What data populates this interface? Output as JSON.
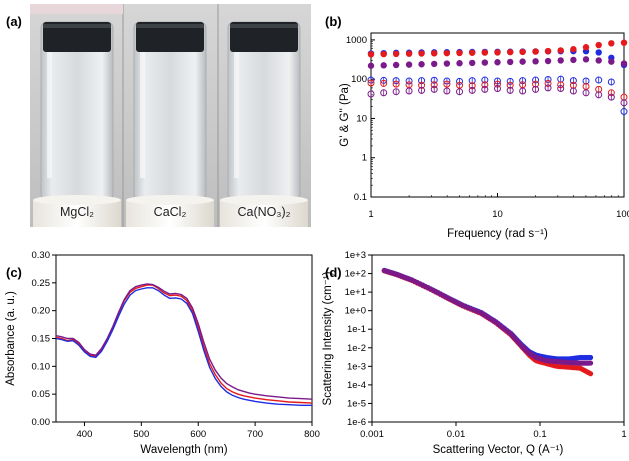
{
  "photo": {
    "panel_label": "(a)",
    "vials": [
      {
        "label": "MgCl₂"
      },
      {
        "label": "CaCl₂"
      },
      {
        "label": "Ca(NO₃)₂"
      }
    ]
  },
  "chart_data": [
    {
      "panel_label": "(b)",
      "type": "scatter",
      "xscale": "log",
      "yscale": "log",
      "xlim": [
        1,
        100
      ],
      "ylim": [
        0.1,
        1500
      ],
      "xticks": [
        "1",
        "10",
        "100"
      ],
      "yticks": [
        "0.1",
        "1",
        "10",
        "100",
        "1000"
      ],
      "xlabel": "Frequency (rad s⁻¹)",
      "ylabel": "G' & G'' (Pa)",
      "x": [
        1,
        1.26,
        1.58,
        2,
        2.51,
        3.16,
        3.98,
        5.01,
        6.31,
        7.94,
        10,
        12.6,
        15.8,
        20,
        25.1,
        31.6,
        39.8,
        50.1,
        63.1,
        79.4,
        100
      ],
      "series": [
        {
          "marker": "filled",
          "color": "#1f2de0",
          "values": [
            450,
            460,
            468,
            472,
            478,
            482,
            486,
            490,
            492,
            495,
            498,
            500,
            505,
            510,
            512,
            515,
            518,
            515,
            480,
            350,
            230
          ]
        },
        {
          "marker": "filled",
          "color": "#e41a1c",
          "values": [
            430,
            435,
            440,
            445,
            450,
            455,
            460,
            465,
            470,
            475,
            480,
            488,
            495,
            505,
            520,
            540,
            580,
            650,
            740,
            820,
            850
          ]
        },
        {
          "marker": "filled",
          "color": "#7b1a8a",
          "values": [
            220,
            225,
            230,
            235,
            240,
            245,
            250,
            255,
            260,
            265,
            270,
            275,
            280,
            285,
            290,
            300,
            310,
            320,
            300,
            280,
            250
          ]
        },
        {
          "marker": "open",
          "color": "#1f2de0",
          "values": [
            95,
            93,
            92,
            90,
            92,
            94,
            90,
            88,
            92,
            95,
            90,
            88,
            92,
            95,
            98,
            100,
            92,
            90,
            95,
            85,
            15
          ]
        },
        {
          "marker": "open",
          "color": "#e41a1c",
          "values": [
            80,
            78,
            75,
            72,
            70,
            72,
            75,
            70,
            68,
            72,
            75,
            70,
            72,
            75,
            78,
            72,
            70,
            65,
            55,
            45,
            35
          ]
        },
        {
          "marker": "open",
          "color": "#7b1a8a",
          "values": [
            42,
            45,
            48,
            50,
            52,
            55,
            50,
            48,
            52,
            55,
            58,
            52,
            50,
            55,
            60,
            58,
            50,
            45,
            40,
            35,
            25
          ]
        }
      ]
    },
    {
      "panel_label": "(c)",
      "type": "line",
      "xlim": [
        350,
        800
      ],
      "ylim": [
        0,
        0.3
      ],
      "xticks": [
        "400",
        "500",
        "600",
        "700",
        "800"
      ],
      "yticks": [
        "0.00",
        "0.05",
        "0.10",
        "0.15",
        "0.20",
        "0.25",
        "0.30"
      ],
      "xlabel": "Wavelength (nm)",
      "ylabel": "Absorbance (a. u.)",
      "x": [
        350,
        360,
        370,
        380,
        390,
        400,
        410,
        420,
        430,
        440,
        450,
        460,
        470,
        480,
        490,
        500,
        510,
        520,
        530,
        540,
        550,
        560,
        570,
        580,
        590,
        600,
        610,
        620,
        630,
        640,
        650,
        660,
        670,
        680,
        690,
        700,
        720,
        740,
        760,
        780,
        800
      ],
      "series": [
        {
          "color": "#e41a1c",
          "values": [
            0.152,
            0.15,
            0.146,
            0.148,
            0.14,
            0.128,
            0.12,
            0.118,
            0.13,
            0.148,
            0.17,
            0.195,
            0.218,
            0.233,
            0.24,
            0.243,
            0.246,
            0.246,
            0.24,
            0.232,
            0.227,
            0.228,
            0.226,
            0.218,
            0.2,
            0.17,
            0.135,
            0.105,
            0.085,
            0.07,
            0.06,
            0.054,
            0.05,
            0.047,
            0.045,
            0.043,
            0.04,
            0.038,
            0.036,
            0.035,
            0.034
          ]
        },
        {
          "color": "#7b1a8a",
          "values": [
            0.155,
            0.153,
            0.15,
            0.15,
            0.143,
            0.13,
            0.122,
            0.12,
            0.132,
            0.15,
            0.172,
            0.197,
            0.22,
            0.236,
            0.243,
            0.246,
            0.248,
            0.247,
            0.242,
            0.235,
            0.23,
            0.231,
            0.229,
            0.222,
            0.205,
            0.177,
            0.143,
            0.113,
            0.093,
            0.079,
            0.069,
            0.063,
            0.058,
            0.055,
            0.052,
            0.05,
            0.047,
            0.045,
            0.043,
            0.042,
            0.041
          ]
        },
        {
          "color": "#1f2de0",
          "values": [
            0.15,
            0.148,
            0.145,
            0.146,
            0.138,
            0.126,
            0.118,
            0.116,
            0.127,
            0.145,
            0.166,
            0.19,
            0.212,
            0.228,
            0.236,
            0.239,
            0.241,
            0.241,
            0.236,
            0.228,
            0.222,
            0.223,
            0.221,
            0.213,
            0.195,
            0.163,
            0.128,
            0.098,
            0.078,
            0.064,
            0.054,
            0.048,
            0.044,
            0.041,
            0.039,
            0.037,
            0.034,
            0.032,
            0.031,
            0.03,
            0.03
          ]
        }
      ]
    },
    {
      "panel_label": "(d)",
      "type": "scatter",
      "xscale": "log",
      "yscale": "log",
      "xlim": [
        0.001,
        1
      ],
      "ylim": [
        1e-06,
        1000
      ],
      "xticks": [
        "0.001",
        "0.01",
        "0.1",
        "1"
      ],
      "yticks": [
        "1e-6",
        "1e-5",
        "1e-4",
        "1e-3",
        "1e-2",
        "1e-1",
        "1e+0",
        "1e+1",
        "1e+2",
        "1e+3"
      ],
      "xlabel": "Scattering Vector, Q (A⁻¹)",
      "ylabel": "Scattering Intensity (cm⁻¹)",
      "x": [
        0.0014,
        0.002,
        0.003,
        0.005,
        0.008,
        0.012,
        0.02,
        0.03,
        0.045,
        0.06,
        0.075,
        0.09,
        0.12,
        0.16,
        0.22,
        0.3,
        0.4
      ],
      "series": [
        {
          "color": "#1f2de0",
          "values": [
            150,
            90,
            45,
            15,
            5,
            2,
            0.8,
            0.25,
            0.06,
            0.015,
            0.006,
            0.004,
            0.003,
            0.0025,
            0.0025,
            0.003,
            0.003
          ]
        },
        {
          "color": "#e41a1c",
          "values": [
            140,
            85,
            42,
            14,
            4.6,
            1.8,
            0.7,
            0.22,
            0.05,
            0.012,
            0.004,
            0.002,
            0.0014,
            0.001,
            0.0009,
            0.0008,
            0.0004
          ]
        },
        {
          "color": "#7b1a8a",
          "values": [
            145,
            88,
            44,
            14.5,
            4.8,
            1.9,
            0.75,
            0.23,
            0.055,
            0.013,
            0.005,
            0.003,
            0.002,
            0.0018,
            0.0016,
            0.0015,
            0.0015
          ]
        }
      ]
    }
  ]
}
